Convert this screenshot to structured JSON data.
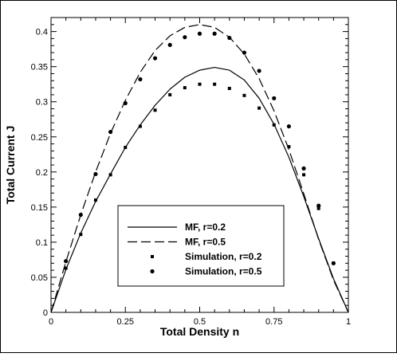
{
  "chart_data": {
    "type": "line",
    "title": "",
    "xlabel": "Total Density n",
    "ylabel": "Total Current J",
    "xlim": [
      0,
      1
    ],
    "ylim": [
      0,
      0.42
    ],
    "x_ticks": [
      0,
      0.25,
      0.5,
      0.75,
      1
    ],
    "x_tick_labels": [
      "0",
      "0.25",
      "0.5",
      "0.75",
      "1"
    ],
    "y_ticks": [
      0,
      0.05,
      0.1,
      0.15,
      0.2,
      0.25,
      0.3,
      0.35,
      0.4
    ],
    "y_tick_labels": [
      "0",
      "0.05",
      "0.1",
      "0.15",
      "0.2",
      "0.25",
      "0.3",
      "0.35",
      "0.4"
    ],
    "grid": false,
    "legend_position": "lower-center",
    "series": [
      {
        "name": "MF, r=0.2",
        "style": "solid-line",
        "color": "#000000",
        "x": [
          0,
          0.05,
          0.1,
          0.15,
          0.2,
          0.25,
          0.3,
          0.35,
          0.4,
          0.45,
          0.5,
          0.55,
          0.6,
          0.65,
          0.7,
          0.75,
          0.8,
          0.85,
          0.9,
          0.95,
          1
        ],
        "y": [
          0,
          0.061,
          0.113,
          0.158,
          0.197,
          0.235,
          0.267,
          0.295,
          0.318,
          0.335,
          0.345,
          0.349,
          0.345,
          0.331,
          0.305,
          0.268,
          0.221,
          0.165,
          0.105,
          0.048,
          0
        ]
      },
      {
        "name": "MF, r=0.5",
        "style": "dashed-line",
        "color": "#000000",
        "x": [
          0,
          0.05,
          0.1,
          0.15,
          0.2,
          0.25,
          0.3,
          0.35,
          0.4,
          0.45,
          0.5,
          0.55,
          0.6,
          0.65,
          0.7,
          0.75,
          0.8,
          0.85,
          0.9,
          0.95,
          1
        ],
        "y": [
          0,
          0.072,
          0.139,
          0.2,
          0.255,
          0.302,
          0.342,
          0.373,
          0.394,
          0.406,
          0.41,
          0.406,
          0.392,
          0.368,
          0.333,
          0.287,
          0.232,
          0.169,
          0.104,
          0.046,
          0
        ]
      },
      {
        "name": "Simulation, r=0.2",
        "style": "square-markers",
        "color": "#000000",
        "x": [
          0.05,
          0.1,
          0.15,
          0.2,
          0.25,
          0.3,
          0.35,
          0.4,
          0.45,
          0.5,
          0.55,
          0.6,
          0.65,
          0.7,
          0.75,
          0.8,
          0.85,
          0.9,
          0.95
        ],
        "y": [
          0.063,
          0.111,
          0.16,
          0.196,
          0.235,
          0.265,
          0.288,
          0.31,
          0.32,
          0.325,
          0.325,
          0.319,
          0.309,
          0.291,
          0.267,
          0.236,
          0.196,
          0.148,
          0.07
        ]
      },
      {
        "name": "Simulation, r=0.5",
        "style": "circle-markers",
        "color": "#000000",
        "x": [
          0.05,
          0.1,
          0.15,
          0.2,
          0.25,
          0.3,
          0.35,
          0.4,
          0.45,
          0.5,
          0.55,
          0.6,
          0.65,
          0.7,
          0.75,
          0.8,
          0.85,
          0.9,
          0.95
        ],
        "y": [
          0.073,
          0.139,
          0.197,
          0.257,
          0.298,
          0.332,
          0.362,
          0.381,
          0.392,
          0.397,
          0.397,
          0.391,
          0.37,
          0.344,
          0.305,
          0.265,
          0.205,
          0.152,
          0.07
        ]
      }
    ]
  }
}
